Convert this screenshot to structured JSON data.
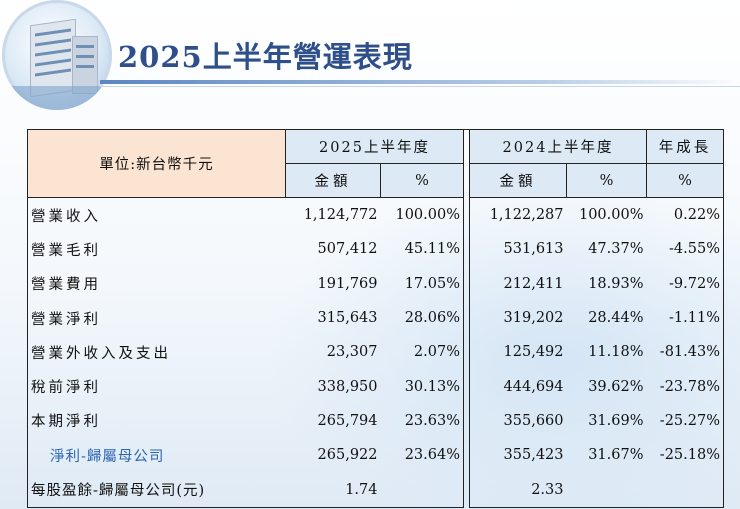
{
  "title": "2025上半年營運表現",
  "table": {
    "unit_label": "單位:新台幣千元",
    "period_current": "2025上半年度",
    "period_prior": "2024上半年度",
    "growth_header": "年成長",
    "col_amount": "金額",
    "col_pct": "%",
    "rows": [
      {
        "label": "營業收入",
        "cur_amount": "1,124,772",
        "cur_pct": "100.00%",
        "prior_amount": "1,122,287",
        "prior_pct": "100.00%",
        "growth": "0.22%"
      },
      {
        "label": "營業毛利",
        "cur_amount": "507,412",
        "cur_pct": "45.11%",
        "prior_amount": "531,613",
        "prior_pct": "47.37%",
        "growth": "-4.55%"
      },
      {
        "label": "營業費用",
        "cur_amount": "191,769",
        "cur_pct": "17.05%",
        "prior_amount": "212,411",
        "prior_pct": "18.93%",
        "growth": "-9.72%"
      },
      {
        "label": "營業淨利",
        "cur_amount": "315,643",
        "cur_pct": "28.06%",
        "prior_amount": "319,202",
        "prior_pct": "28.44%",
        "growth": "-1.11%"
      },
      {
        "label": "營業外收入及支出",
        "cur_amount": "23,307",
        "cur_pct": "2.07%",
        "prior_amount": "125,492",
        "prior_pct": "11.18%",
        "growth": "-81.43%"
      },
      {
        "label": "稅前淨利",
        "cur_amount": "338,950",
        "cur_pct": "30.13%",
        "prior_amount": "444,694",
        "prior_pct": "39.62%",
        "growth": "-23.78%"
      },
      {
        "label": "本期淨利",
        "cur_amount": "265,794",
        "cur_pct": "23.63%",
        "prior_amount": "355,660",
        "prior_pct": "31.69%",
        "growth": "-25.27%"
      },
      {
        "label": "淨利-歸屬母公司",
        "cur_amount": "265,922",
        "cur_pct": "23.64%",
        "prior_amount": "355,423",
        "prior_pct": "31.67%",
        "growth": "-25.18%"
      },
      {
        "label": "每股盈餘-歸屬母公司(元)",
        "cur_amount": "1.74",
        "cur_pct": "",
        "prior_amount": "2.33",
        "prior_pct": "",
        "growth": ""
      }
    ]
  },
  "colors": {
    "title": "#2e4f8a",
    "unit_cell_bg": "#fbe4d2",
    "header_bg": "#dde9f4",
    "sub_row_text": "#2a64b4"
  },
  "icons": {
    "logo": "office-building-logo"
  }
}
